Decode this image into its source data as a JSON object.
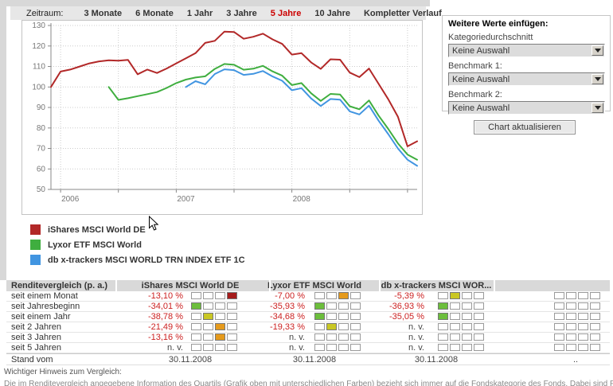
{
  "toolbar": {
    "label": "Zeitraum:",
    "active_color": "#cc0000",
    "periods": [
      {
        "label": "3 Monate",
        "active": false
      },
      {
        "label": "6 Monate",
        "active": false
      },
      {
        "label": "1 Jahr",
        "active": false
      },
      {
        "label": "3 Jahre",
        "active": false
      },
      {
        "label": "5 Jahre",
        "active": true
      },
      {
        "label": "10 Jahre",
        "active": false
      },
      {
        "label": "Kompletter Verlauf",
        "active": false
      }
    ]
  },
  "chart_data": {
    "type": "line",
    "title": "",
    "xlabel": "",
    "ylabel": "",
    "ylim": [
      50,
      130
    ],
    "yticks": [
      50,
      60,
      70,
      80,
      90,
      100,
      110,
      120,
      130
    ],
    "grid": true,
    "legend_position": "below-left",
    "x_unit": "months from chart start (Dez 2005 = 0)",
    "x_range_months": [
      0,
      38
    ],
    "xticks_months": [
      1,
      7,
      13,
      19,
      25,
      31,
      37
    ],
    "year_labels": [
      {
        "label": "2006",
        "month": 2
      },
      {
        "label": "2007",
        "month": 14
      },
      {
        "label": "2008",
        "month": 26
      }
    ],
    "series": [
      {
        "name": "iShares MSCI World DE",
        "color": "#b22828",
        "start_month": 0,
        "values": [
          100,
          107.5,
          108.5,
          110,
          111.5,
          112.5,
          113,
          112.8,
          113.2,
          106.2,
          108.5,
          106.8,
          109,
          111.5,
          114,
          116.5,
          121.5,
          122.5,
          127,
          126.8,
          123.5,
          124.5,
          126,
          123.2,
          121,
          115.8,
          116.5,
          112,
          108.8,
          113.5,
          113.3,
          107,
          104.8,
          109,
          101.5,
          94,
          85.5,
          71,
          73.5
        ]
      },
      {
        "name": "Lyxor ETF MSCI World",
        "color": "#3fae3f",
        "start_month": 6,
        "values": [
          100,
          93.7,
          94.5,
          95.5,
          96.5,
          97.5,
          99.5,
          101.9,
          103.6,
          104.6,
          105.2,
          108.8,
          111.2,
          110.8,
          108.4,
          108.9,
          110.3,
          107.6,
          105.5,
          100.9,
          101.9,
          96.9,
          93.2,
          96.6,
          96.3,
          90.6,
          89.1,
          93.4,
          86,
          79.5,
          72.5,
          67,
          64.5
        ]
      },
      {
        "name": "db x-trackers MSCI WORLD TRN INDEX ETF 1C",
        "color": "#4195e1",
        "start_month": 14,
        "values": [
          100,
          102.8,
          101.3,
          106.3,
          108.6,
          108.2,
          105.9,
          106.4,
          107.8,
          105.1,
          103,
          98.4,
          99.4,
          94.4,
          90.7,
          94.1,
          93.8,
          88.1,
          86.6,
          90.9,
          83.5,
          77,
          70,
          64.5,
          61.5
        ]
      }
    ]
  },
  "sidebar": {
    "title": "Weitere Werte einfügen:",
    "fields": [
      {
        "label": "Kategoriedurchschnitt",
        "value": "Keine Auswahl"
      },
      {
        "label": "Benchmark 1:",
        "value": "Keine Auswahl"
      },
      {
        "label": "Benchmark 2:",
        "value": "Keine Auswahl"
      }
    ],
    "button_label": "Chart aktualisieren"
  },
  "table": {
    "header": [
      "Renditevergleich (p. a.)",
      "iShares MSCI World DE",
      "Lyxor ETF MSCI World",
      "db x-trackers MSCI WOR...",
      ""
    ],
    "negative_color": "#cc2222",
    "quartile_colors": {
      "1": "#6cbe3c",
      "2": "#c9c724",
      "3": "#e59a1c",
      "4": "#a51c1c"
    },
    "rows": [
      {
        "label": "seit einem Monat",
        "cells": [
          {
            "value": "-13,10 %",
            "quartile": 4
          },
          {
            "value": "-7,00 %",
            "quartile": 3
          },
          {
            "value": "-5,39 %",
            "quartile": 2
          },
          {
            "value": "",
            "quartile": 0
          }
        ]
      },
      {
        "label": "seit Jahresbeginn",
        "cells": [
          {
            "value": "-34,01 %",
            "quartile": 1
          },
          {
            "value": "-35,93 %",
            "quartile": 1
          },
          {
            "value": "-36,93 %",
            "quartile": 1
          },
          {
            "value": "",
            "quartile": 0
          }
        ]
      },
      {
        "label": "seit einem Jahr",
        "cells": [
          {
            "value": "-38,78 %",
            "quartile": 2
          },
          {
            "value": "-34,68 %",
            "quartile": 1
          },
          {
            "value": "-35,05 %",
            "quartile": 1
          },
          {
            "value": "",
            "quartile": 0
          }
        ]
      },
      {
        "label": "seit 2 Jahren",
        "cells": [
          {
            "value": "-21,49 %",
            "quartile": 3
          },
          {
            "value": "-19,33 %",
            "quartile": 2
          },
          {
            "value": "n. v.",
            "quartile": 0
          },
          {
            "value": "",
            "quartile": 0
          }
        ]
      },
      {
        "label": "seit 3 Jahren",
        "cells": [
          {
            "value": "-13,16 %",
            "quartile": 3
          },
          {
            "value": "n. v.",
            "quartile": 0
          },
          {
            "value": "n. v.",
            "quartile": 0
          },
          {
            "value": "",
            "quartile": 0
          }
        ]
      },
      {
        "label": "seit 5 Jahren",
        "cells": [
          {
            "value": "n. v.",
            "quartile": 0
          },
          {
            "value": "n. v.",
            "quartile": 0
          },
          {
            "value": "n. v.",
            "quartile": 0
          },
          {
            "value": "",
            "quartile": 0
          }
        ]
      }
    ],
    "date_row": {
      "label": "Stand vom",
      "values": [
        "30.11.2008",
        "30.11.2008",
        "30.11.2008",
        ".."
      ]
    }
  },
  "footnote": {
    "title": "Wichtiger Hinweis zum Vergleich:",
    "text": "Die im Renditevergleich angegebene Information des Quartils (Grafik oben mit unterschiedlichen Farben) bezieht sich immer auf die Fondskategorie des Fonds. Dabei sind Fonds aus"
  }
}
